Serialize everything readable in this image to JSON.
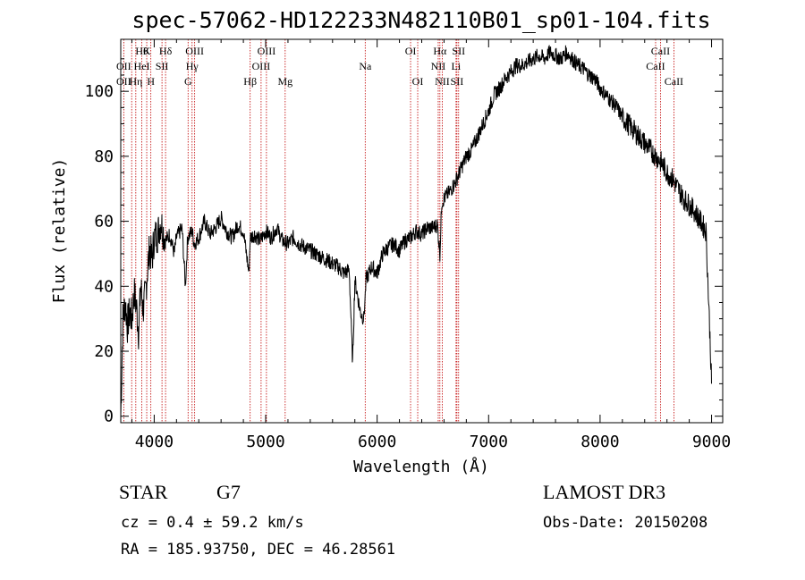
{
  "chart_data": {
    "type": "line",
    "title": "spec-57062-HD122233N482110B01_sp01-104.fits",
    "xlabel": "Wavelength (Å)",
    "ylabel": "Flux (relative)",
    "xlim": [
      3700,
      9100
    ],
    "ylim": [
      -2,
      116
    ],
    "xticks": [
      4000,
      5000,
      6000,
      7000,
      8000,
      9000
    ],
    "yticks": [
      0,
      20,
      40,
      60,
      80,
      100
    ],
    "series": [
      {
        "name": "spectrum",
        "x": [
          3700,
          3720,
          3740,
          3760,
          3780,
          3800,
          3820,
          3840,
          3860,
          3880,
          3900,
          3920,
          3940,
          3960,
          3980,
          4000,
          4030,
          4060,
          4100,
          4140,
          4180,
          4200,
          4250,
          4280,
          4300,
          4340,
          4360,
          4400,
          4450,
          4500,
          4550,
          4600,
          4650,
          4700,
          4750,
          4800,
          4850,
          4861,
          4900,
          4950,
          5000,
          5050,
          5100,
          5150,
          5200,
          5250,
          5300,
          5350,
          5400,
          5450,
          5500,
          5550,
          5600,
          5650,
          5700,
          5750,
          5780,
          5800,
          5820,
          5850,
          5880,
          5890,
          5900,
          5950,
          6000,
          6050,
          6100,
          6150,
          6200,
          6250,
          6300,
          6350,
          6400,
          6450,
          6500,
          6540,
          6563,
          6580,
          6600,
          6650,
          6700,
          6750,
          6800,
          6850,
          6900,
          6950,
          7000,
          7050,
          7100,
          7150,
          7200,
          7250,
          7300,
          7350,
          7400,
          7450,
          7500,
          7550,
          7600,
          7650,
          7700,
          7750,
          7800,
          7850,
          7900,
          7950,
          8000,
          8050,
          8100,
          8150,
          8200,
          8250,
          8300,
          8350,
          8400,
          8450,
          8500,
          8550,
          8600,
          8650,
          8700,
          8750,
          8800,
          8850,
          8900,
          8950,
          8980,
          9000
        ],
        "values": [
          0,
          30,
          35,
          28,
          32,
          30,
          38,
          34,
          26,
          40,
          33,
          37,
          45,
          52,
          48,
          55,
          56,
          60,
          54,
          56,
          50,
          55,
          58,
          40,
          55,
          57,
          53,
          55,
          60,
          56,
          58,
          61,
          57,
          55,
          59,
          57,
          44,
          55,
          56,
          54,
          57,
          55,
          58,
          54,
          53,
          55,
          53,
          52,
          51,
          50,
          49,
          48,
          47,
          46,
          44,
          45,
          16,
          42,
          38,
          32,
          30,
          35,
          42,
          46,
          44,
          50,
          52,
          53,
          51,
          54,
          55,
          57,
          56,
          58,
          58,
          59,
          50,
          66,
          67,
          69,
          72,
          76,
          80,
          82,
          86,
          90,
          94,
          99,
          101,
          104,
          106,
          108,
          108,
          109,
          110,
          111,
          110,
          112,
          111,
          110,
          112,
          110,
          108,
          107,
          105,
          104,
          101,
          99,
          97,
          95,
          92,
          90,
          88,
          86,
          84,
          82,
          80,
          78,
          75,
          73,
          70,
          67,
          65,
          63,
          60,
          57,
          30,
          10
        ]
      }
    ],
    "annotations_top": [
      {
        "x": 3889,
        "row": 1,
        "text": "Hθ"
      },
      {
        "x": 3933,
        "row": 1,
        "text": "K"
      },
      {
        "x": 4102,
        "row": 1,
        "text": "Hδ"
      },
      {
        "x": 4363,
        "row": 1,
        "text": "OIII"
      },
      {
        "x": 5007,
        "row": 1,
        "text": "OIII"
      },
      {
        "x": 6300,
        "row": 1,
        "text": "OI"
      },
      {
        "x": 6563,
        "row": 1,
        "text": "Hα"
      },
      {
        "x": 6731,
        "row": 1,
        "text": "SII"
      },
      {
        "x": 8542,
        "row": 1,
        "text": "CaII"
      },
      {
        "x": 3727,
        "row": 2,
        "text": "OII"
      },
      {
        "x": 3889,
        "row": 2,
        "text": "HeI"
      },
      {
        "x": 4070,
        "row": 2,
        "text": "SII"
      },
      {
        "x": 4340,
        "row": 2,
        "text": "Hγ"
      },
      {
        "x": 4959,
        "row": 2,
        "text": "OIII"
      },
      {
        "x": 5893,
        "row": 2,
        "text": "Na"
      },
      {
        "x": 6548,
        "row": 2,
        "text": "NII"
      },
      {
        "x": 6708,
        "row": 2,
        "text": "Li"
      },
      {
        "x": 8498,
        "row": 2,
        "text": "CaII"
      },
      {
        "x": 3727,
        "row": 3,
        "text": "OII"
      },
      {
        "x": 3835,
        "row": 3,
        "text": "Hη"
      },
      {
        "x": 3970,
        "row": 3,
        "text": "H"
      },
      {
        "x": 4304,
        "row": 3,
        "text": "G"
      },
      {
        "x": 4861,
        "row": 3,
        "text": "Hβ"
      },
      {
        "x": 5175,
        "row": 3,
        "text": "Mg"
      },
      {
        "x": 6364,
        "row": 3,
        "text": "OI"
      },
      {
        "x": 6584,
        "row": 3,
        "text": "NII"
      },
      {
        "x": 6716,
        "row": 3,
        "text": "SII"
      },
      {
        "x": 8662,
        "row": 3,
        "text": "CaII"
      }
    ],
    "reference_lines": [
      3727,
      3798,
      3835,
      3889,
      3933,
      3970,
      4070,
      4102,
      4304,
      4340,
      4363,
      4861,
      4959,
      5007,
      5175,
      5893,
      6300,
      6364,
      6548,
      6563,
      6584,
      6708,
      6716,
      6731,
      8498,
      8542,
      8662
    ]
  },
  "info": {
    "object_type": "STAR",
    "subclass": "G7",
    "survey": "LAMOST DR3",
    "cz": "cz = 0.4 ± 59.2 km/s",
    "obs_date": "Obs-Date: 20150208",
    "coords": "RA = 185.93750, DEC =  46.28561"
  },
  "colors": {
    "axis": "#000000",
    "line": "#000000",
    "ref_line": "#c00000"
  }
}
